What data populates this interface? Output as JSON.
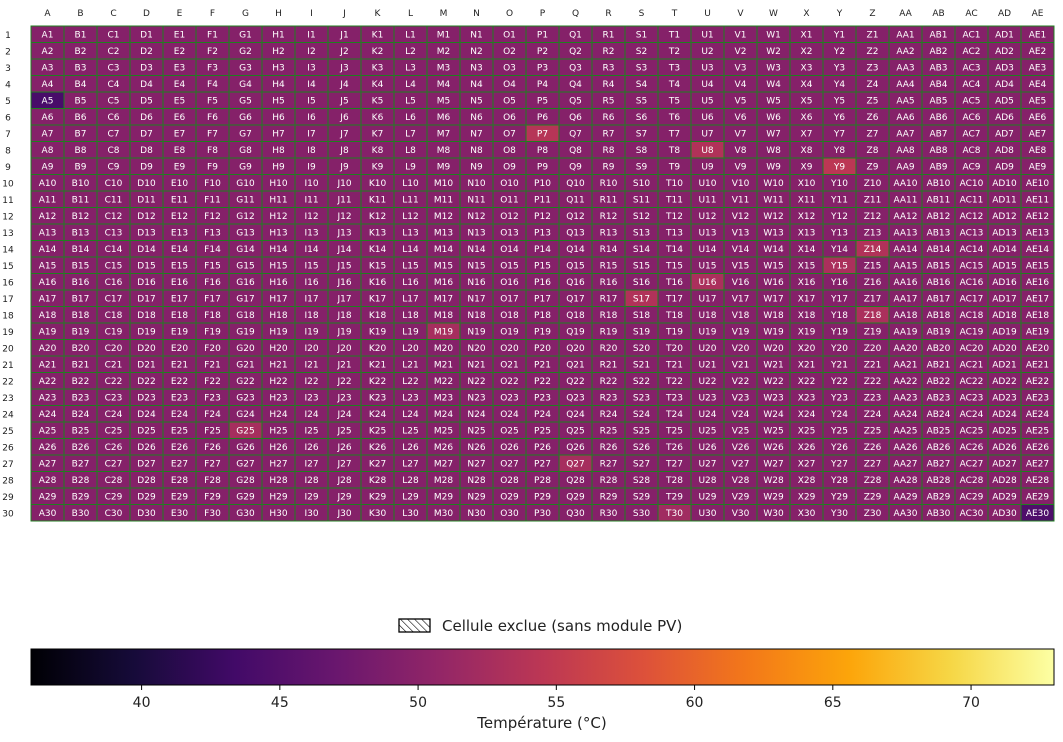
{
  "chart_data": {
    "type": "heatmap",
    "columns": [
      "A",
      "B",
      "C",
      "D",
      "E",
      "F",
      "G",
      "H",
      "I",
      "J",
      "K",
      "L",
      "M",
      "N",
      "O",
      "P",
      "Q",
      "R",
      "S",
      "T",
      "U",
      "V",
      "W",
      "X",
      "Y",
      "Z",
      "AA",
      "AB",
      "AC",
      "AD",
      "AE"
    ],
    "rows": [
      1,
      2,
      3,
      4,
      5,
      6,
      7,
      8,
      9,
      10,
      11,
      12,
      13,
      14,
      15,
      16,
      17,
      18,
      19,
      20,
      21,
      22,
      23,
      24,
      25,
      26,
      27,
      28,
      29,
      30
    ],
    "base_value": 49.5,
    "hotspots": [
      {
        "cell": "A5",
        "value": 44.0
      },
      {
        "cell": "P7",
        "value": 54.0
      },
      {
        "cell": "U8",
        "value": 53.5
      },
      {
        "cell": "Y9",
        "value": 54.5
      },
      {
        "cell": "Z14",
        "value": 53.5
      },
      {
        "cell": "Y15",
        "value": 53.0
      },
      {
        "cell": "U16",
        "value": 53.0
      },
      {
        "cell": "S17",
        "value": 53.5
      },
      {
        "cell": "Z18",
        "value": 53.0
      },
      {
        "cell": "M19",
        "value": 52.5
      },
      {
        "cell": "G25",
        "value": 52.5
      },
      {
        "cell": "Q27",
        "value": 52.5
      },
      {
        "cell": "T30",
        "value": 52.0
      },
      {
        "cell": "AE30",
        "value": 44.5
      }
    ],
    "colorbar": {
      "colormap": "inferno",
      "range": [
        36,
        73
      ],
      "ticks": [
        40,
        45,
        50,
        55,
        60,
        65,
        70
      ],
      "label": "Température (°C)"
    },
    "legend": {
      "label": "Cellule exclue (sans module PV)",
      "placement": "bottom-center"
    },
    "grid": true
  }
}
